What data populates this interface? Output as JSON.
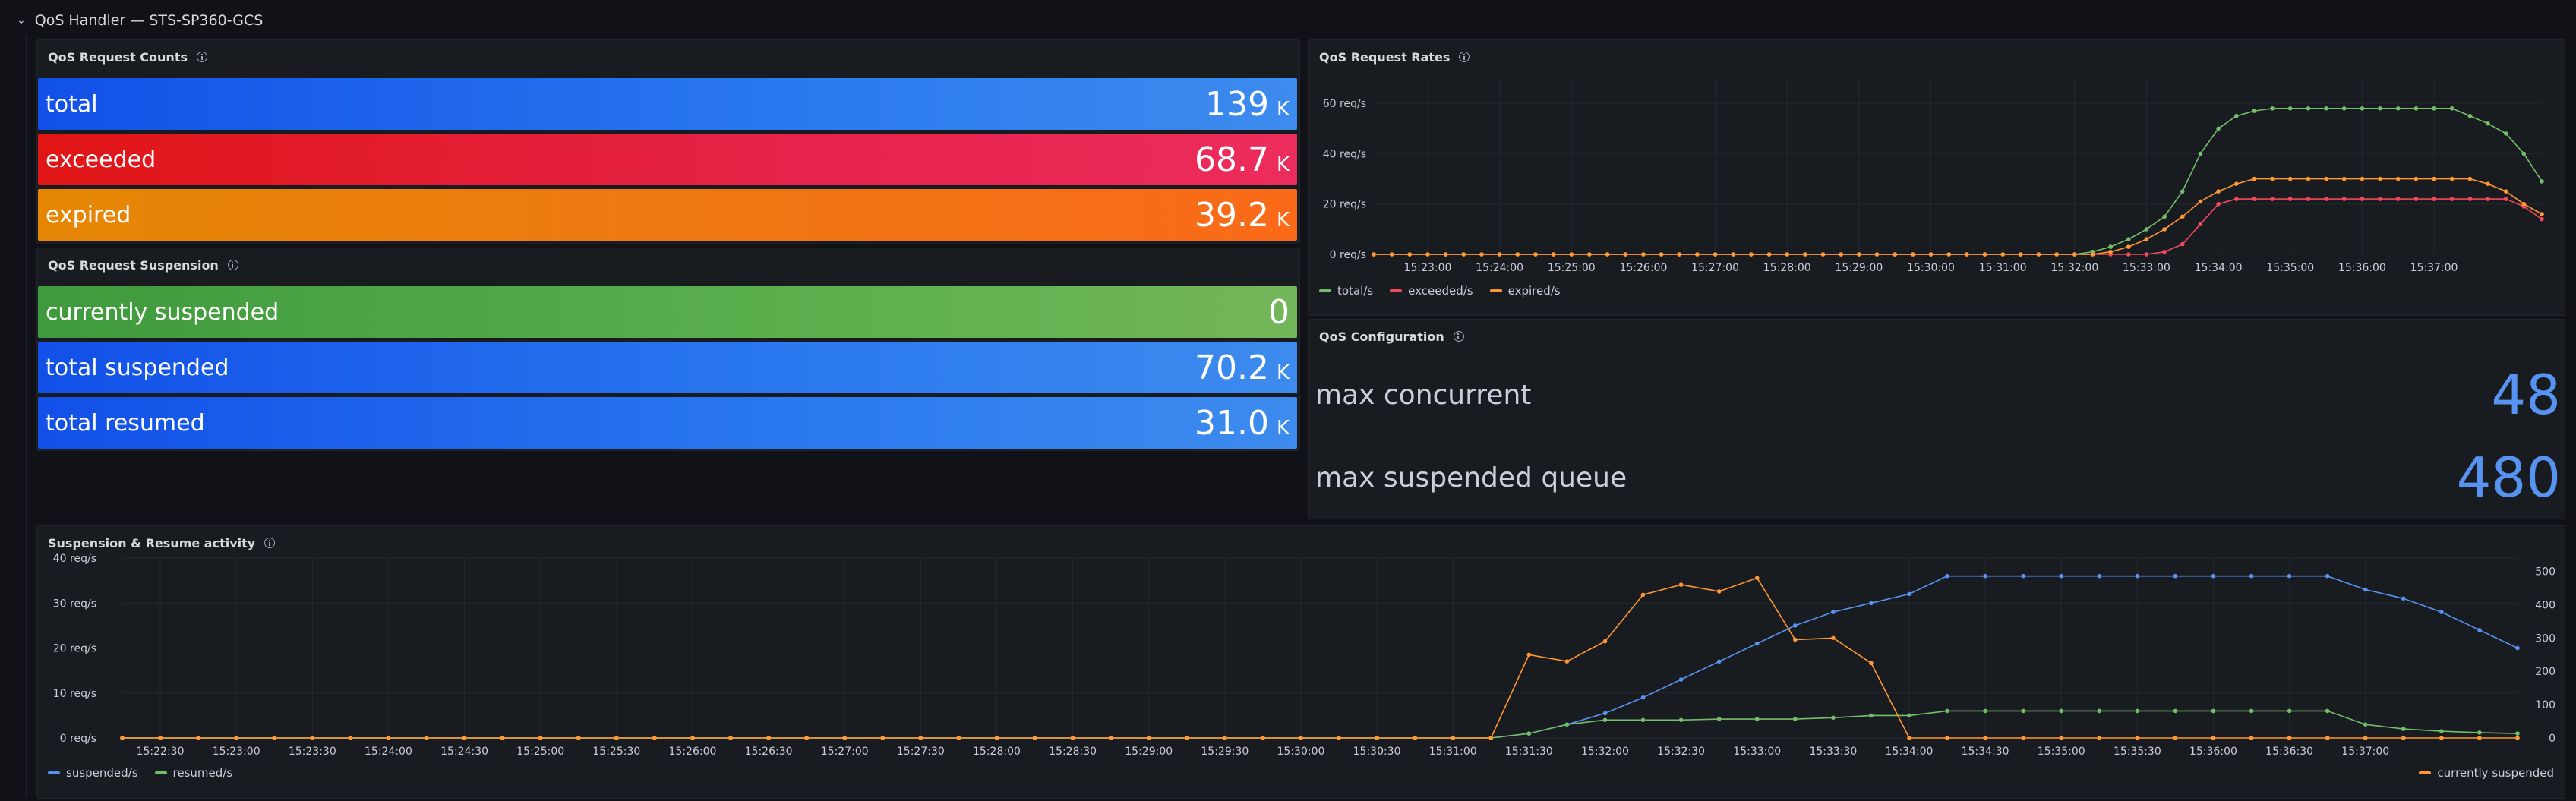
{
  "row": {
    "title": "QoS Handler — STS-SP360-GCS"
  },
  "counts_panel": {
    "title": "QoS Request Counts",
    "stats": [
      {
        "label": "total",
        "value": "139",
        "unit": "K"
      },
      {
        "label": "exceeded",
        "value": "68.7",
        "unit": "K"
      },
      {
        "label": "expired",
        "value": "39.2",
        "unit": "K"
      }
    ]
  },
  "suspension_panel": {
    "title": "QoS Request Suspension",
    "stats": [
      {
        "label": "currently suspended",
        "value": "0",
        "unit": ""
      },
      {
        "label": "total suspended",
        "value": "70.2",
        "unit": "K"
      },
      {
        "label": "total resumed",
        "value": "31.0",
        "unit": "K"
      }
    ]
  },
  "config_panel": {
    "title": "QoS Configuration",
    "items": [
      {
        "label": "max concurrent",
        "value": "48"
      },
      {
        "label": "max suspended queue",
        "value": "480"
      }
    ]
  },
  "colors": {
    "green": "#73bf69",
    "red": "#f2495c",
    "orange": "#ff9830",
    "blue": "#5794f2"
  },
  "chart_data": [
    {
      "type": "line",
      "title": "QoS Request Rates",
      "ylim": [
        0,
        70
      ],
      "y_ticks": [
        "0 req/s",
        "20 req/s",
        "40 req/s",
        "60 req/s"
      ],
      "y_tick_values": [
        0,
        20,
        40,
        60
      ],
      "x_start": "15:22:15",
      "x_step_seconds": 15,
      "x_ticks": [
        "15:23:00",
        "15:24:00",
        "15:25:00",
        "15:26:00",
        "15:27:00",
        "15:28:00",
        "15:29:00",
        "15:30:00",
        "15:31:00",
        "15:32:00",
        "15:33:00",
        "15:34:00",
        "15:35:00",
        "15:36:00",
        "15:37:00"
      ],
      "series": [
        {
          "name": "total/s",
          "color": "#73bf69",
          "values": [
            0,
            0,
            0,
            0,
            0,
            0,
            0,
            0,
            0,
            0,
            0,
            0,
            0,
            0,
            0,
            0,
            0,
            0,
            0,
            0,
            0,
            0,
            0,
            0,
            0,
            0,
            0,
            0,
            0,
            0,
            0,
            0,
            0,
            0,
            0,
            0,
            0,
            0,
            0,
            0,
            1,
            3,
            6,
            10,
            15,
            25,
            40,
            50,
            55,
            57,
            58,
            58,
            58,
            58,
            58,
            58,
            58,
            58,
            58,
            58,
            58,
            55,
            52,
            48,
            40,
            29
          ]
        },
        {
          "name": "exceeded/s",
          "color": "#f2495c",
          "values": [
            0,
            0,
            0,
            0,
            0,
            0,
            0,
            0,
            0,
            0,
            0,
            0,
            0,
            0,
            0,
            0,
            0,
            0,
            0,
            0,
            0,
            0,
            0,
            0,
            0,
            0,
            0,
            0,
            0,
            0,
            0,
            0,
            0,
            0,
            0,
            0,
            0,
            0,
            0,
            0,
            0,
            0,
            0,
            0,
            1,
            4,
            12,
            20,
            22,
            22,
            22,
            22,
            22,
            22,
            22,
            22,
            22,
            22,
            22,
            22,
            22,
            22,
            22,
            22,
            19,
            14
          ]
        },
        {
          "name": "expired/s",
          "color": "#ff9830",
          "values": [
            0,
            0,
            0,
            0,
            0,
            0,
            0,
            0,
            0,
            0,
            0,
            0,
            0,
            0,
            0,
            0,
            0,
            0,
            0,
            0,
            0,
            0,
            0,
            0,
            0,
            0,
            0,
            0,
            0,
            0,
            0,
            0,
            0,
            0,
            0,
            0,
            0,
            0,
            0,
            0,
            0,
            1,
            3,
            6,
            10,
            15,
            21,
            25,
            28,
            30,
            30,
            30,
            30,
            30,
            30,
            30,
            30,
            30,
            30,
            30,
            30,
            30,
            28,
            25,
            20,
            16
          ]
        }
      ]
    },
    {
      "type": "line",
      "title": "Suspension & Resume activity",
      "ylim": [
        0,
        40
      ],
      "y_ticks": [
        "0 req/s",
        "10 req/s",
        "20 req/s",
        "30 req/s",
        "40 req/s"
      ],
      "y_tick_values": [
        0,
        10,
        20,
        30,
        40
      ],
      "y2lim": [
        0,
        540
      ],
      "y2_ticks": [
        "0",
        "100",
        "200",
        "300",
        "400",
        "500"
      ],
      "y2_tick_values": [
        0,
        100,
        200,
        300,
        400,
        500
      ],
      "x_start": "15:22:15",
      "x_step_seconds": 15,
      "x_ticks": [
        "15:22:30",
        "15:23:00",
        "15:23:30",
        "15:24:00",
        "15:24:30",
        "15:25:00",
        "15:25:30",
        "15:26:00",
        "15:26:30",
        "15:27:00",
        "15:27:30",
        "15:28:00",
        "15:28:30",
        "15:29:00",
        "15:29:30",
        "15:30:00",
        "15:30:30",
        "15:31:00",
        "15:31:30",
        "15:32:00",
        "15:32:30",
        "15:33:00",
        "15:33:30",
        "15:34:00",
        "15:34:30",
        "15:35:00",
        "15:35:30",
        "15:36:00",
        "15:36:30",
        "15:37:00"
      ],
      "series": [
        {
          "name": "suspended/s",
          "color": "#5794f2",
          "axis": "left",
          "values": [
            0,
            0,
            0,
            0,
            0,
            0,
            0,
            0,
            0,
            0,
            0,
            0,
            0,
            0,
            0,
            0,
            0,
            0,
            0,
            0,
            0,
            0,
            0,
            0,
            0,
            0,
            0,
            0,
            0,
            0,
            0,
            0,
            0,
            0,
            0,
            0,
            0,
            1,
            3,
            5.5,
            9,
            13,
            17,
            21,
            25,
            28,
            30,
            32,
            36,
            36,
            36,
            36,
            36,
            36,
            36,
            36,
            36,
            36,
            36,
            33,
            31,
            28,
            24,
            20
          ]
        },
        {
          "name": "resumed/s",
          "color": "#73bf69",
          "axis": "left",
          "values": [
            0,
            0,
            0,
            0,
            0,
            0,
            0,
            0,
            0,
            0,
            0,
            0,
            0,
            0,
            0,
            0,
            0,
            0,
            0,
            0,
            0,
            0,
            0,
            0,
            0,
            0,
            0,
            0,
            0,
            0,
            0,
            0,
            0,
            0,
            0,
            0,
            0,
            1,
            3,
            4,
            4,
            4,
            4.2,
            4.2,
            4.2,
            4.5,
            5,
            5,
            6,
            6,
            6,
            6,
            6,
            6,
            6,
            6,
            6,
            6,
            6,
            3,
            2,
            1.5,
            1.2,
            1
          ]
        },
        {
          "name": "currently suspended",
          "color": "#ff9830",
          "axis": "right",
          "values": [
            0,
            0,
            0,
            0,
            0,
            0,
            0,
            0,
            0,
            0,
            0,
            0,
            0,
            0,
            0,
            0,
            0,
            0,
            0,
            0,
            0,
            0,
            0,
            0,
            0,
            0,
            0,
            0,
            0,
            0,
            0,
            0,
            0,
            0,
            0,
            0,
            0,
            250,
            230,
            290,
            430,
            460,
            440,
            480,
            295,
            300,
            225,
            0,
            0,
            0,
            0,
            0,
            0,
            0,
            0,
            0,
            0,
            0,
            0,
            0,
            0,
            0,
            0,
            0
          ]
        }
      ]
    }
  ]
}
